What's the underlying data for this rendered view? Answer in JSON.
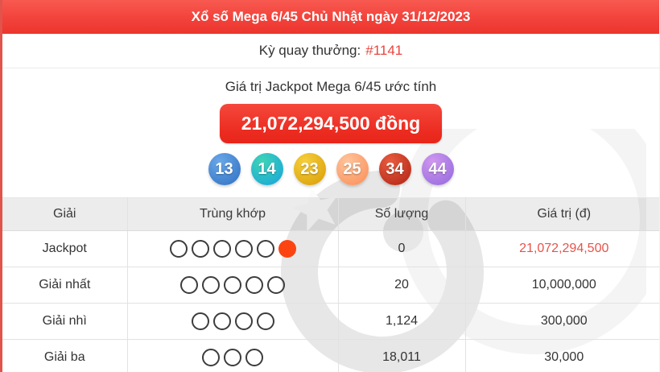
{
  "header": {
    "title": "Xổ số Mega 6/45 Chủ Nhật ngày 31/12/2023"
  },
  "draw_info": {
    "label": "Kỳ quay thưởng:",
    "number": "#1141"
  },
  "jackpot": {
    "caption": "Giá trị Jackpot Mega 6/45 ước tính",
    "amount": "21,072,294,500 đồng"
  },
  "winning_numbers": [
    {
      "value": "13",
      "color_top": "#6aa8e8",
      "color_bottom": "#2e6fc2"
    },
    {
      "value": "14",
      "color_top": "#3fd4b6",
      "color_bottom": "#16a3dc"
    },
    {
      "value": "23",
      "color_top": "#f6cf3d",
      "color_bottom": "#d89c04"
    },
    {
      "value": "25",
      "color_top": "#ffc49b",
      "color_bottom": "#fa8c55"
    },
    {
      "value": "34",
      "color_top": "#e85c40",
      "color_bottom": "#b02313"
    },
    {
      "value": "44",
      "color_top": "#cf97ef",
      "color_bottom": "#9268dd"
    }
  ],
  "results_table": {
    "headers": [
      "Giải",
      "Trùng khớp",
      "Số lượng",
      "Giá trị (đ)"
    ],
    "rows": [
      {
        "prize": "Jackpot",
        "circles_open": 5,
        "circles_filled": 1,
        "quantity": "0",
        "value": "21,072,294,500",
        "highlight": true
      },
      {
        "prize": "Giải nhất",
        "circles_open": 5,
        "circles_filled": 0,
        "quantity": "20",
        "value": "10,000,000",
        "highlight": false
      },
      {
        "prize": "Giải nhì",
        "circles_open": 4,
        "circles_filled": 0,
        "quantity": "1,124",
        "value": "300,000",
        "highlight": false
      },
      {
        "prize": "Giải ba",
        "circles_open": 3,
        "circles_filled": 0,
        "quantity": "18,011",
        "value": "30,000",
        "highlight": false
      }
    ]
  },
  "colors": {
    "header_bg": "#f2423b",
    "accent_red": "#e8453c",
    "button_bg": "#ec2c21",
    "filled_circle": "#fb4411",
    "highlight_value": "#e8534a"
  }
}
